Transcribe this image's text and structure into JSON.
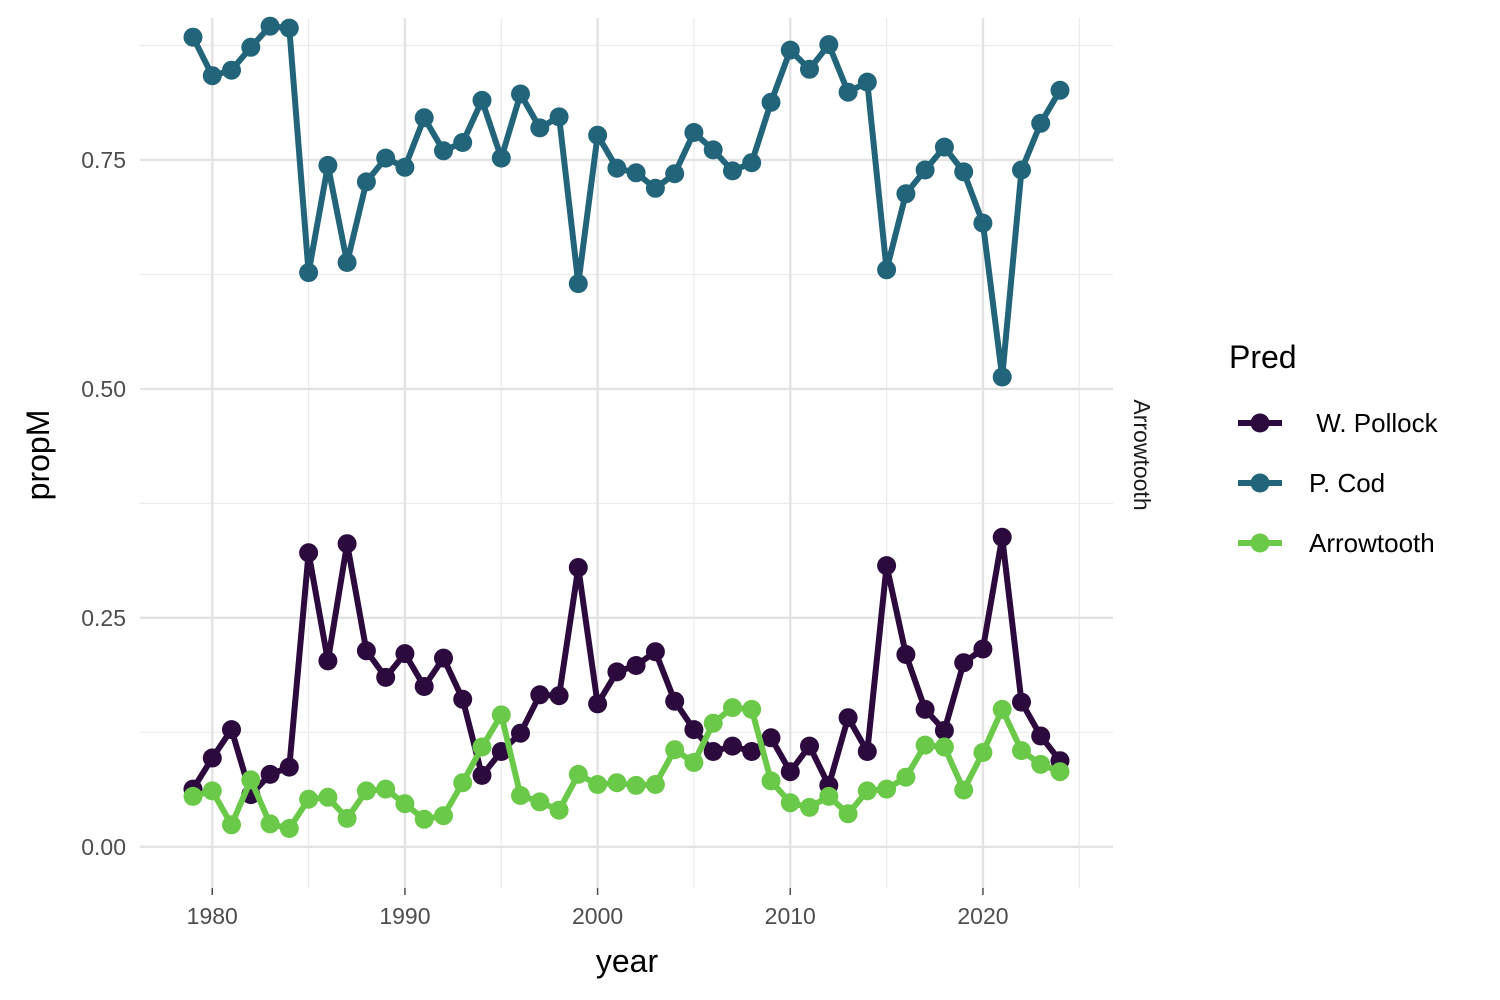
{
  "chart_data": {
    "type": "line",
    "xlabel": "year",
    "ylabel": "propM",
    "facet_label": "Arrowtooth",
    "legend_title": "Pred",
    "legend_position": "right",
    "grid": true,
    "xlim": [
      1976.25,
      2026.75
    ],
    "ylim": [
      -0.045,
      0.905
    ],
    "x_ticks": [
      1980,
      1990,
      2000,
      2010,
      2020
    ],
    "x_tick_labels": [
      "1980",
      "1990",
      "2000",
      "2010",
      "2020"
    ],
    "y_ticks": [
      0,
      0.25,
      0.5,
      0.75
    ],
    "y_tick_labels": [
      "0.00",
      "0.25",
      "0.50",
      "0.75"
    ],
    "x": [
      1979,
      1980,
      1981,
      1982,
      1983,
      1984,
      1985,
      1986,
      1987,
      1988,
      1989,
      1990,
      1991,
      1992,
      1993,
      1994,
      1995,
      1996,
      1997,
      1998,
      1999,
      2000,
      2001,
      2002,
      2003,
      2004,
      2005,
      2006,
      2007,
      2008,
      2009,
      2010,
      2011,
      2012,
      2013,
      2014,
      2015,
      2016,
      2017,
      2018,
      2019,
      2020,
      2021,
      2022,
      2023,
      2024
    ],
    "series": [
      {
        "name": " W. Pollock",
        "color": "#2d0a3e",
        "values": [
          0.063,
          0.097,
          0.128,
          0.057,
          0.079,
          0.087,
          0.321,
          0.203,
          0.331,
          0.214,
          0.185,
          0.211,
          0.175,
          0.206,
          0.161,
          0.078,
          0.104,
          0.124,
          0.166,
          0.165,
          0.305,
          0.156,
          0.191,
          0.198,
          0.213,
          0.159,
          0.128,
          0.104,
          0.11,
          0.104,
          0.119,
          0.082,
          0.11,
          0.067,
          0.141,
          0.104,
          0.307,
          0.21,
          0.15,
          0.127,
          0.201,
          0.216,
          0.338,
          0.158,
          0.121,
          0.094
        ]
      },
      {
        "name": "P. Cod",
        "color": "#22657a",
        "values": [
          0.884,
          0.842,
          0.848,
          0.873,
          0.896,
          0.894,
          0.627,
          0.744,
          0.638,
          0.726,
          0.752,
          0.742,
          0.796,
          0.76,
          0.769,
          0.815,
          0.752,
          0.822,
          0.785,
          0.797,
          0.615,
          0.777,
          0.741,
          0.736,
          0.719,
          0.735,
          0.78,
          0.761,
          0.738,
          0.747,
          0.813,
          0.87,
          0.849,
          0.876,
          0.824,
          0.835,
          0.63,
          0.713,
          0.739,
          0.764,
          0.737,
          0.681,
          0.513,
          0.739,
          0.79,
          0.826
        ]
      },
      {
        "name": "Arrowtooth",
        "color": "#6bc94a",
        "values": [
          0.055,
          0.061,
          0.024,
          0.073,
          0.025,
          0.02,
          0.052,
          0.054,
          0.031,
          0.061,
          0.063,
          0.047,
          0.03,
          0.034,
          0.07,
          0.109,
          0.144,
          0.056,
          0.049,
          0.04,
          0.079,
          0.068,
          0.07,
          0.067,
          0.068,
          0.106,
          0.092,
          0.135,
          0.152,
          0.15,
          0.072,
          0.048,
          0.043,
          0.055,
          0.036,
          0.061,
          0.063,
          0.076,
          0.111,
          0.109,
          0.062,
          0.103,
          0.15,
          0.105,
          0.09,
          0.082
        ]
      }
    ]
  }
}
